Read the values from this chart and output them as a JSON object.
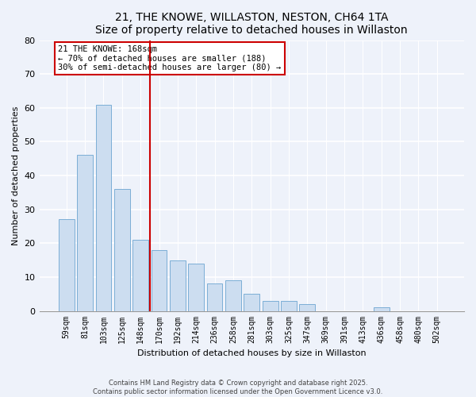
{
  "title": "21, THE KNOWE, WILLASTON, NESTON, CH64 1TA",
  "subtitle": "Size of property relative to detached houses in Willaston",
  "xlabel": "Distribution of detached houses by size in Willaston",
  "ylabel": "Number of detached properties",
  "bar_labels": [
    "59sqm",
    "81sqm",
    "103sqm",
    "125sqm",
    "148sqm",
    "170sqm",
    "192sqm",
    "214sqm",
    "236sqm",
    "258sqm",
    "281sqm",
    "303sqm",
    "325sqm",
    "347sqm",
    "369sqm",
    "391sqm",
    "413sqm",
    "436sqm",
    "458sqm",
    "480sqm",
    "502sqm"
  ],
  "bar_values": [
    27,
    46,
    61,
    36,
    21,
    18,
    15,
    14,
    8,
    9,
    5,
    3,
    3,
    2,
    0,
    0,
    0,
    1,
    0,
    0,
    0
  ],
  "bar_color": "#ccddf0",
  "bar_edge_color": "#7baed6",
  "vline_color": "#cc0000",
  "annotation_title": "21 THE KNOWE: 168sqm",
  "annotation_line1": "← 70% of detached houses are smaller (188)",
  "annotation_line2": "30% of semi-detached houses are larger (80) →",
  "annotation_box_color": "#ffffff",
  "annotation_box_edge": "#cc0000",
  "ylim": [
    0,
    80
  ],
  "yticks": [
    0,
    10,
    20,
    30,
    40,
    50,
    60,
    70,
    80
  ],
  "footer_line1": "Contains HM Land Registry data © Crown copyright and database right 2025.",
  "footer_line2": "Contains public sector information licensed under the Open Government Licence v3.0.",
  "bg_color": "#eef2fa",
  "plot_bg_color": "#eef2fa",
  "grid_color": "#ffffff",
  "vline_bar_index": 5
}
